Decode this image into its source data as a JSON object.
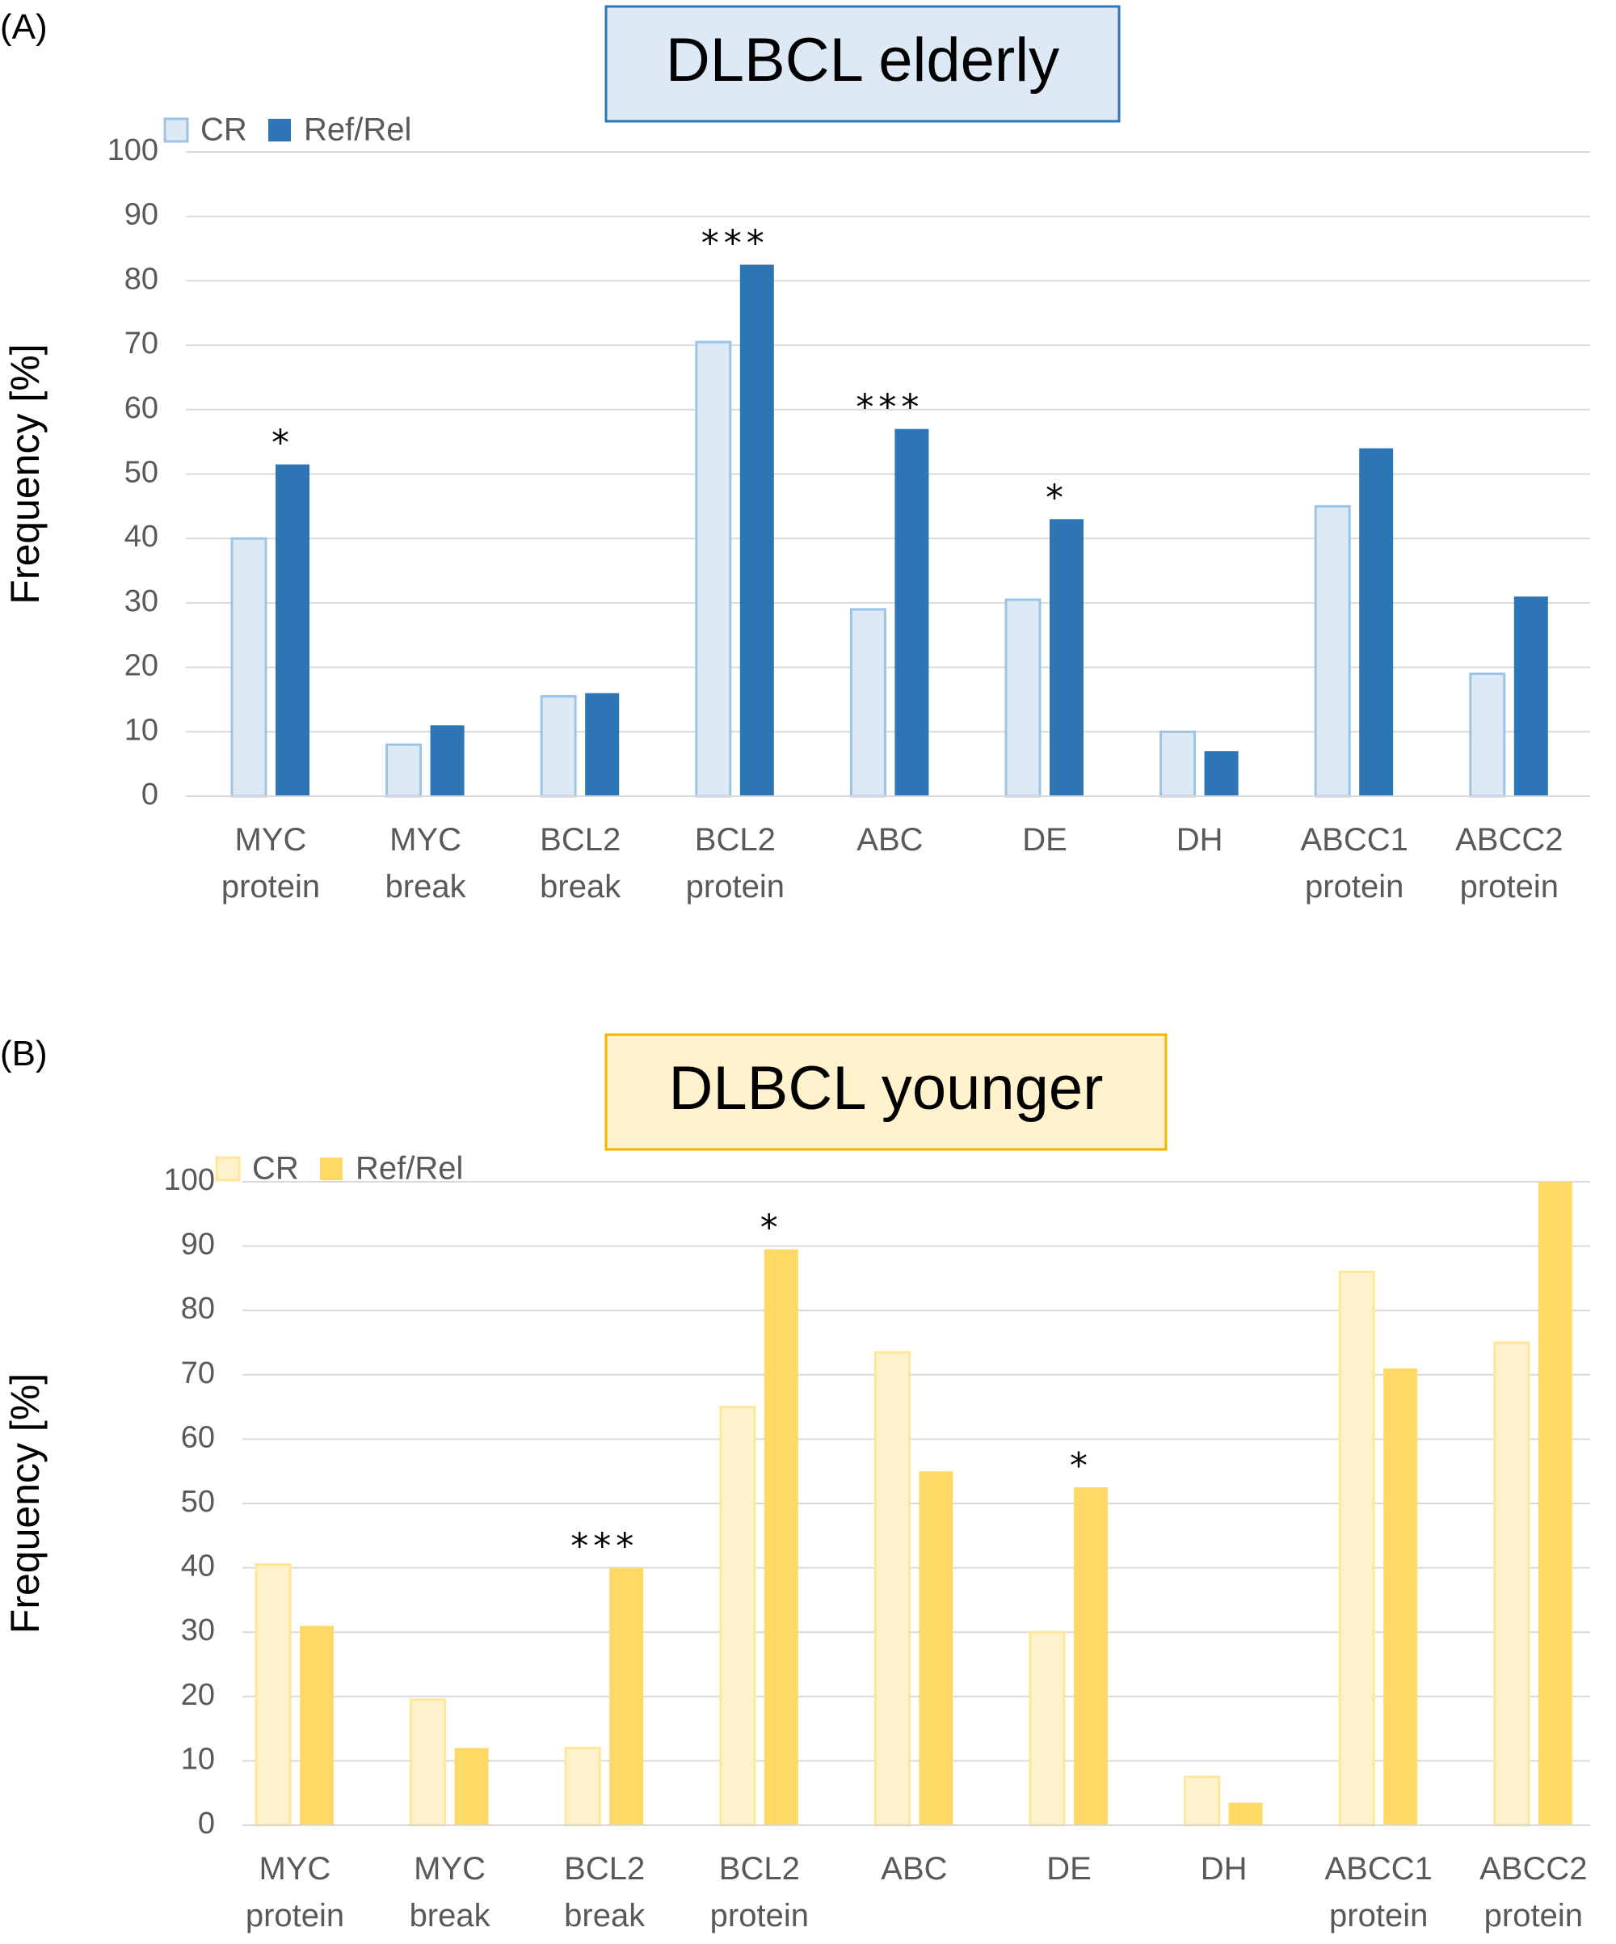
{
  "chart_data": [
    {
      "type": "bar",
      "panel_label": "(A)",
      "title": "DLBCL elderly",
      "ylabel": "Frequency [%]",
      "ylim": [
        0,
        100
      ],
      "yticks": [
        "0",
        "10",
        "20",
        "30",
        "40",
        "50",
        "60",
        "70",
        "80",
        "90",
        "100"
      ],
      "categories": [
        [
          "MYC",
          "protein"
        ],
        [
          "MYC",
          "break"
        ],
        [
          "BCL2",
          "break"
        ],
        [
          "BCL2",
          "protein"
        ],
        [
          "ABC"
        ],
        [
          "DE"
        ],
        [
          "DH"
        ],
        [
          "ABCC1",
          "protein"
        ],
        [
          "ABCC2",
          "protein"
        ]
      ],
      "series": [
        {
          "name": "CR",
          "values": [
            40,
            8,
            15.5,
            70.5,
            29,
            30.5,
            10,
            45,
            19
          ]
        },
        {
          "name": "Ref/Rel",
          "values": [
            51.5,
            11,
            16,
            82.5,
            57,
            43,
            7,
            54,
            31
          ]
        }
      ],
      "annotations": [
        "*",
        "",
        "",
        "***",
        "***",
        "*",
        "",
        "",
        ""
      ],
      "colors": {
        "cr_fill": "#ddeaf6",
        "cr_stroke": "#9dc3e6",
        "rr_fill": "#2e75b6",
        "title_bg": "#ddeaf6",
        "title_border": "#2e75b6"
      },
      "legend_position": "top-left",
      "grid": true
    },
    {
      "type": "bar",
      "panel_label": "(B)",
      "title": "DLBCL younger",
      "ylabel": "Frequency [%]",
      "ylim": [
        0,
        100
      ],
      "yticks": [
        "0",
        "10",
        "20",
        "30",
        "40",
        "50",
        "60",
        "70",
        "80",
        "90",
        "100"
      ],
      "categories": [
        [
          "MYC",
          "protein"
        ],
        [
          "MYC",
          "break"
        ],
        [
          "BCL2",
          "break"
        ],
        [
          "BCL2",
          "protein"
        ],
        [
          "ABC"
        ],
        [
          "DE"
        ],
        [
          "DH"
        ],
        [
          "ABCC1",
          "protein"
        ],
        [
          "ABCC2",
          "protein"
        ]
      ],
      "series": [
        {
          "name": "CR",
          "values": [
            40.5,
            19.5,
            12,
            65,
            73.5,
            30,
            7.5,
            86,
            75
          ]
        },
        {
          "name": "Ref/Rel",
          "values": [
            31,
            12,
            40,
            89.5,
            55,
            52.5,
            3.5,
            71,
            100
          ]
        }
      ],
      "annotations": [
        "",
        "",
        "***",
        "*",
        "",
        "*",
        "",
        "",
        ""
      ],
      "colors": {
        "cr_fill": "#fff2cc",
        "cr_stroke": "#ffe699",
        "rr_fill": "#ffd966",
        "title_bg": "#fff2cc",
        "title_border": "#f4b400"
      },
      "legend_position": "top-left",
      "grid": true
    }
  ]
}
